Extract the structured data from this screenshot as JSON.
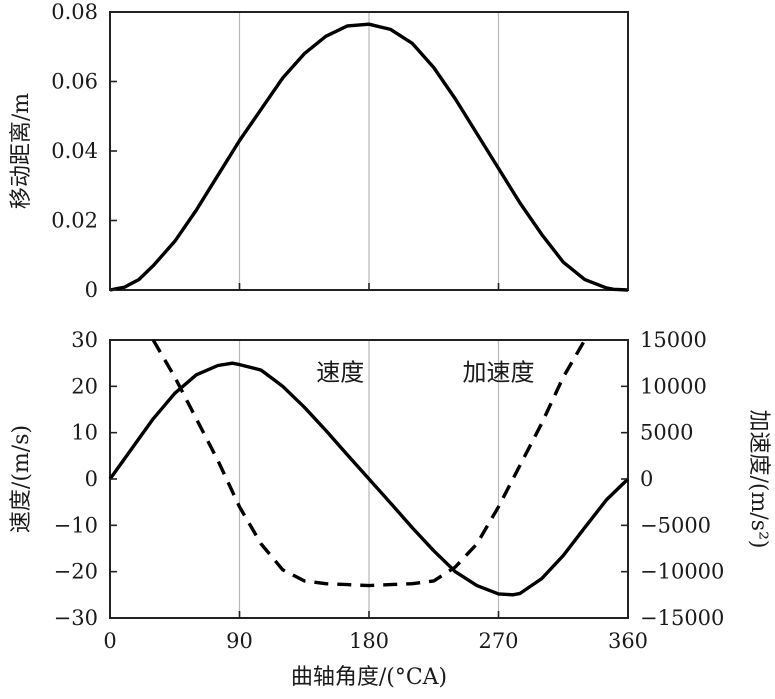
{
  "chart_data": [
    {
      "type": "line",
      "id": "displacement",
      "title": "",
      "xlabel": "",
      "ylabel": "移动距离/m",
      "xlim": [
        0,
        360
      ],
      "ylim": [
        0,
        0.08
      ],
      "xticks": [
        0,
        90,
        180,
        270,
        360
      ],
      "yticks": [
        0,
        0.02,
        0.04,
        0.06,
        0.08
      ],
      "ytick_labels": [
        "0",
        "0.02",
        "0.04",
        "0.06",
        "0.08"
      ],
      "grid": "vertical",
      "series": [
        {
          "style": "solid",
          "color": "#000000",
          "x": [
            0,
            10,
            20,
            30,
            45,
            60,
            75,
            90,
            105,
            120,
            135,
            150,
            165,
            180,
            195,
            210,
            225,
            240,
            255,
            270,
            285,
            300,
            315,
            330,
            345,
            350,
            360
          ],
          "y": [
            0,
            0.0008,
            0.003,
            0.007,
            0.014,
            0.023,
            0.033,
            0.043,
            0.052,
            0.061,
            0.068,
            0.073,
            0.076,
            0.0765,
            0.075,
            0.071,
            0.064,
            0.055,
            0.045,
            0.035,
            0.025,
            0.016,
            0.008,
            0.003,
            0.0006,
            0.0002,
            0
          ]
        }
      ]
    },
    {
      "type": "line",
      "id": "velocity-acceleration",
      "title": "",
      "xlabel": "曲轴角度/(°CA)",
      "ylabel": "速度/(m/s)",
      "y2label": "加速度/(m/s²)",
      "xlim": [
        0,
        360
      ],
      "ylim": [
        -30,
        30
      ],
      "y2lim": [
        -15000,
        15000
      ],
      "xticks": [
        0,
        90,
        180,
        270,
        360
      ],
      "yticks": [
        -30,
        -20,
        -10,
        0,
        10,
        20,
        30
      ],
      "y2ticks": [
        -15000,
        -10000,
        -5000,
        0,
        5000,
        10000,
        15000
      ],
      "grid": "vertical",
      "annotations": [
        {
          "text": "速度",
          "x": 160,
          "y": 23
        },
        {
          "text": "加速度",
          "x": 270,
          "y": 23
        }
      ],
      "series": [
        {
          "name": "速度",
          "axis": "left",
          "style": "solid",
          "color": "#000000",
          "x": [
            0,
            15,
            30,
            45,
            60,
            75,
            85,
            90,
            105,
            120,
            135,
            150,
            165,
            180,
            195,
            210,
            225,
            240,
            255,
            270,
            280,
            285,
            300,
            315,
            330,
            345,
            360
          ],
          "y": [
            0,
            6.5,
            13,
            18.5,
            22.5,
            24.5,
            25,
            24.7,
            23.5,
            20,
            15.5,
            10.5,
            5.2,
            0,
            -5.2,
            -10.5,
            -15.5,
            -20,
            -23,
            -24.8,
            -25,
            -24.7,
            -21.5,
            -16.5,
            -10.5,
            -4.5,
            0
          ]
        },
        {
          "name": "加速度",
          "axis": "right",
          "style": "dashed",
          "color": "#000000",
          "x": [
            30,
            45,
            60,
            75,
            90,
            105,
            120,
            135,
            150,
            165,
            180,
            195,
            210,
            225,
            240,
            255,
            270,
            285,
            300,
            315,
            330
          ],
          "y": [
            15000,
            11000,
            6500,
            2000,
            -3000,
            -7000,
            -9800,
            -11000,
            -11300,
            -11400,
            -11500,
            -11400,
            -11300,
            -11000,
            -9500,
            -7000,
            -3000,
            1500,
            6000,
            11000,
            15000
          ]
        }
      ]
    }
  ]
}
